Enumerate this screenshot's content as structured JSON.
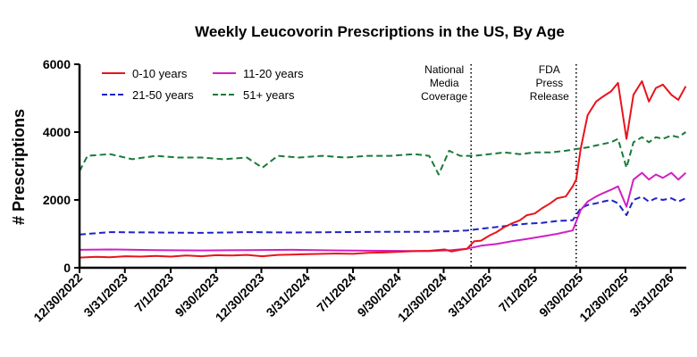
{
  "chart_data": {
    "type": "line",
    "title": "Weekly Leucovorin Prescriptions in the US, By Age",
    "xlabel": "",
    "ylabel": "# Prescriptions",
    "ylim": [
      0,
      6000
    ],
    "yticks": [
      0,
      2000,
      4000,
      6000
    ],
    "y_tick_labels": [
      "0",
      "2000",
      "4000",
      "6000"
    ],
    "x_ticks": [
      "12/30/2022",
      "3/31/2023",
      "7/1/2023",
      "9/30/2023",
      "12/30/2023",
      "3/31/2024",
      "7/1/2024",
      "9/30/2024",
      "12/30/2024",
      "3/31/2025",
      "7/1/2025",
      "9/30/2025",
      "12/30/2025",
      "3/31/2026"
    ],
    "xlim": [
      "12/30/2022",
      "5/1/2026"
    ],
    "grid": false,
    "legend_position": "top-left",
    "annotations": [
      {
        "date": "2/23/2025",
        "lines": [
          "National",
          "Media",
          "Coverage"
        ],
        "style": "dotted"
      },
      {
        "date": "9/22/2025",
        "lines": [
          "FDA",
          "Press",
          "Release"
        ],
        "style": "dotted"
      }
    ],
    "series": [
      {
        "name": "0-10 years",
        "color": "#e8141c",
        "dash": "solid",
        "points": [
          [
            "12/30/2022",
            300
          ],
          [
            "2/1/2023",
            320
          ],
          [
            "3/1/2023",
            310
          ],
          [
            "4/1/2023",
            340
          ],
          [
            "5/1/2023",
            330
          ],
          [
            "6/1/2023",
            350
          ],
          [
            "7/1/2023",
            330
          ],
          [
            "8/1/2023",
            360
          ],
          [
            "9/1/2023",
            340
          ],
          [
            "10/1/2023",
            370
          ],
          [
            "11/1/2023",
            360
          ],
          [
            "12/1/2023",
            380
          ],
          [
            "1/1/2024",
            340
          ],
          [
            "2/1/2024",
            380
          ],
          [
            "3/1/2024",
            390
          ],
          [
            "4/1/2024",
            400
          ],
          [
            "5/1/2024",
            410
          ],
          [
            "6/1/2024",
            420
          ],
          [
            "7/1/2024",
            410
          ],
          [
            "8/1/2024",
            440
          ],
          [
            "9/1/2024",
            450
          ],
          [
            "10/1/2024",
            470
          ],
          [
            "11/1/2024",
            490
          ],
          [
            "12/1/2024",
            500
          ],
          [
            "1/1/2025",
            540
          ],
          [
            "1/15/2025",
            480
          ],
          [
            "2/1/2025",
            530
          ],
          [
            "2/15/2025",
            560
          ],
          [
            "3/1/2025",
            780
          ],
          [
            "3/15/2025",
            800
          ],
          [
            "4/1/2025",
            950
          ],
          [
            "4/15/2025",
            1050
          ],
          [
            "5/1/2025",
            1200
          ],
          [
            "5/15/2025",
            1300
          ],
          [
            "6/1/2025",
            1400
          ],
          [
            "6/15/2025",
            1550
          ],
          [
            "7/1/2025",
            1600
          ],
          [
            "7/15/2025",
            1750
          ],
          [
            "8/1/2025",
            1900
          ],
          [
            "8/15/2025",
            2050
          ],
          [
            "9/1/2025",
            2100
          ],
          [
            "9/15/2025",
            2400
          ],
          [
            "9/22/2025",
            2600
          ],
          [
            "10/1/2025",
            3500
          ],
          [
            "10/15/2025",
            4500
          ],
          [
            "11/1/2025",
            4900
          ],
          [
            "11/15/2025",
            5050
          ],
          [
            "12/1/2025",
            5200
          ],
          [
            "12/15/2025",
            5450
          ],
          [
            "1/1/2026",
            3800
          ],
          [
            "1/15/2026",
            5100
          ],
          [
            "2/1/2026",
            5500
          ],
          [
            "2/15/2026",
            4900
          ],
          [
            "3/1/2026",
            5300
          ],
          [
            "3/15/2026",
            5400
          ],
          [
            "4/1/2026",
            5100
          ],
          [
            "4/15/2026",
            4950
          ],
          [
            "4/30/2026",
            5350
          ]
        ]
      },
      {
        "name": "11-20 years",
        "color": "#d21fc4",
        "dash": "solid",
        "points": [
          [
            "12/30/2022",
            530
          ],
          [
            "3/1/2023",
            540
          ],
          [
            "6/1/2023",
            520
          ],
          [
            "9/1/2023",
            510
          ],
          [
            "12/1/2023",
            520
          ],
          [
            "3/1/2024",
            530
          ],
          [
            "6/1/2024",
            510
          ],
          [
            "9/1/2024",
            500
          ],
          [
            "12/1/2024",
            490
          ],
          [
            "1/15/2025",
            520
          ],
          [
            "2/15/2025",
            560
          ],
          [
            "3/15/2025",
            650
          ],
          [
            "4/15/2025",
            700
          ],
          [
            "5/15/2025",
            780
          ],
          [
            "6/15/2025",
            850
          ],
          [
            "7/15/2025",
            920
          ],
          [
            "8/15/2025",
            1000
          ],
          [
            "9/15/2025",
            1100
          ],
          [
            "10/1/2025",
            1700
          ],
          [
            "10/15/2025",
            1950
          ],
          [
            "11/1/2025",
            2100
          ],
          [
            "11/15/2025",
            2200
          ],
          [
            "12/1/2025",
            2300
          ],
          [
            "12/15/2025",
            2400
          ],
          [
            "1/1/2026",
            1800
          ],
          [
            "1/15/2026",
            2600
          ],
          [
            "2/1/2026",
            2800
          ],
          [
            "2/15/2026",
            2600
          ],
          [
            "3/1/2026",
            2750
          ],
          [
            "3/15/2026",
            2650
          ],
          [
            "4/1/2026",
            2800
          ],
          [
            "4/15/2026",
            2600
          ],
          [
            "4/30/2026",
            2800
          ]
        ]
      },
      {
        "name": "21-50 years",
        "color": "#1d23c8",
        "dash": "dashed",
        "points": [
          [
            "12/30/2022",
            980
          ],
          [
            "3/1/2023",
            1050
          ],
          [
            "6/1/2023",
            1040
          ],
          [
            "9/1/2023",
            1030
          ],
          [
            "12/1/2023",
            1050
          ],
          [
            "3/1/2024",
            1040
          ],
          [
            "6/1/2024",
            1050
          ],
          [
            "9/1/2024",
            1060
          ],
          [
            "12/1/2024",
            1060
          ],
          [
            "1/15/2025",
            1080
          ],
          [
            "2/15/2025",
            1100
          ],
          [
            "3/15/2025",
            1150
          ],
          [
            "4/15/2025",
            1200
          ],
          [
            "5/15/2025",
            1250
          ],
          [
            "6/15/2025",
            1300
          ],
          [
            "7/15/2025",
            1320
          ],
          [
            "8/15/2025",
            1380
          ],
          [
            "9/15/2025",
            1400
          ],
          [
            "10/1/2025",
            1750
          ],
          [
            "10/15/2025",
            1850
          ],
          [
            "11/1/2025",
            1900
          ],
          [
            "11/15/2025",
            1950
          ],
          [
            "12/1/2025",
            2000
          ],
          [
            "12/15/2025",
            1900
          ],
          [
            "1/1/2026",
            1550
          ],
          [
            "1/15/2026",
            2000
          ],
          [
            "2/1/2026",
            2100
          ],
          [
            "2/15/2026",
            1950
          ],
          [
            "3/1/2026",
            2050
          ],
          [
            "3/15/2026",
            2000
          ],
          [
            "4/1/2026",
            2050
          ],
          [
            "4/15/2026",
            1950
          ],
          [
            "4/30/2026",
            2050
          ]
        ]
      },
      {
        "name": "51+ years",
        "color": "#1a7a3a",
        "dash": "dashed",
        "points": [
          [
            "12/30/2022",
            2850
          ],
          [
            "1/15/2023",
            3300
          ],
          [
            "3/1/2023",
            3350
          ],
          [
            "4/15/2023",
            3200
          ],
          [
            "6/1/2023",
            3300
          ],
          [
            "7/15/2023",
            3250
          ],
          [
            "9/1/2023",
            3250
          ],
          [
            "10/15/2023",
            3200
          ],
          [
            "12/1/2023",
            3250
          ],
          [
            "1/1/2024",
            2950
          ],
          [
            "2/1/2024",
            3300
          ],
          [
            "3/15/2024",
            3250
          ],
          [
            "5/1/2024",
            3300
          ],
          [
            "6/15/2024",
            3250
          ],
          [
            "8/1/2024",
            3300
          ],
          [
            "9/15/2024",
            3300
          ],
          [
            "11/1/2024",
            3350
          ],
          [
            "12/1/2024",
            3300
          ],
          [
            "12/20/2024",
            2750
          ],
          [
            "1/10/2025",
            3450
          ],
          [
            "2/1/2025",
            3300
          ],
          [
            "3/1/2025",
            3300
          ],
          [
            "4/1/2025",
            3350
          ],
          [
            "5/1/2025",
            3400
          ],
          [
            "6/1/2025",
            3350
          ],
          [
            "7/1/2025",
            3400
          ],
          [
            "8/1/2025",
            3400
          ],
          [
            "9/1/2025",
            3450
          ],
          [
            "9/22/2025",
            3500
          ],
          [
            "10/15/2025",
            3550
          ],
          [
            "11/15/2025",
            3650
          ],
          [
            "12/1/2025",
            3700
          ],
          [
            "12/15/2025",
            3800
          ],
          [
            "1/1/2026",
            2950
          ],
          [
            "1/15/2026",
            3700
          ],
          [
            "2/1/2026",
            3850
          ],
          [
            "2/15/2026",
            3700
          ],
          [
            "3/1/2026",
            3850
          ],
          [
            "3/15/2026",
            3800
          ],
          [
            "4/1/2026",
            3900
          ],
          [
            "4/15/2026",
            3850
          ],
          [
            "4/30/2026",
            4000
          ]
        ]
      }
    ]
  }
}
